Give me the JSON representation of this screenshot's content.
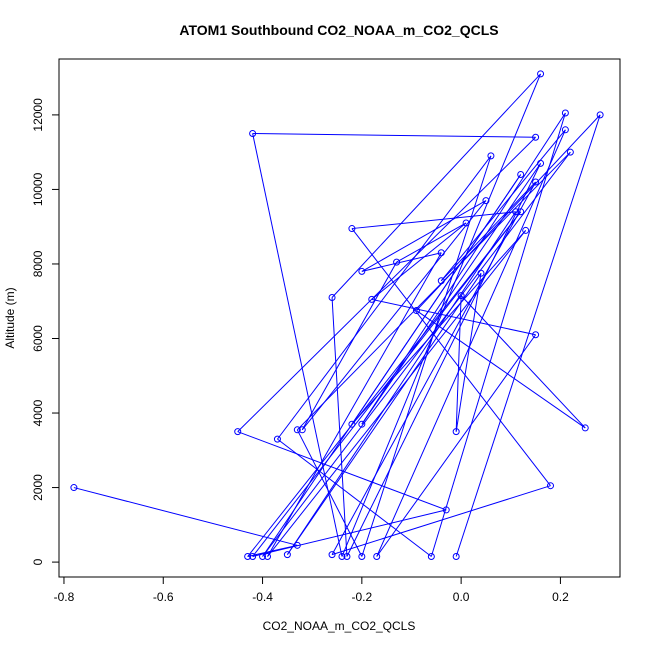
{
  "chart_data": {
    "type": "scatter",
    "title": "ATOM1 Southbound CO2_NOAA_m_CO2_QCLS",
    "xlabel": "CO2_NOAA_m_CO2_QCLS",
    "ylabel": "Altitude (m)",
    "xlim": [
      -0.81,
      0.32
    ],
    "ylim": [
      -400,
      13500
    ],
    "x_ticks": [
      -0.8,
      -0.6,
      -0.4,
      -0.2,
      0.0,
      0.2
    ],
    "x_tick_labels": [
      "-0.8",
      "-0.6",
      "-0.4",
      "-0.2",
      "0.0",
      "0.2"
    ],
    "y_ticks": [
      0,
      2000,
      4000,
      6000,
      8000,
      10000,
      12000
    ],
    "y_tick_labels": [
      "0",
      "2000",
      "4000",
      "6000",
      "8000",
      "10000",
      "12000"
    ],
    "grid": false,
    "series_color": "#0000ff",
    "points": [
      [
        -0.78,
        2000
      ],
      [
        -0.33,
        450
      ],
      [
        -0.43,
        150
      ],
      [
        0.12,
        9400
      ],
      [
        -0.42,
        150
      ],
      [
        -0.03,
        1400
      ],
      [
        -0.45,
        3500
      ],
      [
        0.15,
        11400
      ],
      [
        -0.42,
        11500
      ],
      [
        -0.24,
        150
      ],
      [
        0.16,
        13100
      ],
      [
        -0.26,
        7100
      ],
      [
        -0.23,
        150
      ],
      [
        0.16,
        10700
      ],
      [
        -0.2,
        3700
      ],
      [
        0.21,
        12050
      ],
      [
        -0.06,
        150
      ],
      [
        -0.37,
        3300
      ],
      [
        0.06,
        10900
      ],
      [
        -0.2,
        150
      ],
      [
        -0.33,
        3550
      ],
      [
        0.22,
        11000
      ],
      [
        -0.4,
        150
      ],
      [
        0.12,
        10400
      ],
      [
        -0.22,
        3700
      ],
      [
        0.13,
        8900
      ],
      [
        -0.39,
        150
      ],
      [
        -0.04,
        8300
      ],
      [
        -0.2,
        7800
      ],
      [
        0.05,
        9700
      ],
      [
        -0.32,
        3550
      ],
      [
        -0.13,
        8050
      ],
      [
        0.01,
        9100
      ],
      [
        -0.18,
        7050
      ],
      [
        0.15,
        6100
      ],
      [
        -0.17,
        150
      ],
      [
        0.21,
        11600
      ],
      [
        -0.04,
        7550
      ],
      [
        0.15,
        10200
      ],
      [
        -0.26,
        200
      ],
      [
        0.18,
        2050
      ],
      [
        -0.22,
        8950
      ],
      [
        0.11,
        9400
      ],
      [
        -0.35,
        200
      ],
      [
        0.04,
        7750
      ],
      [
        -0.01,
        3500
      ],
      [
        0.0,
        7150
      ],
      [
        0.25,
        3600
      ],
      [
        -0.09,
        6750
      ],
      [
        0.28,
        12000
      ],
      [
        -0.01,
        150
      ]
    ]
  }
}
